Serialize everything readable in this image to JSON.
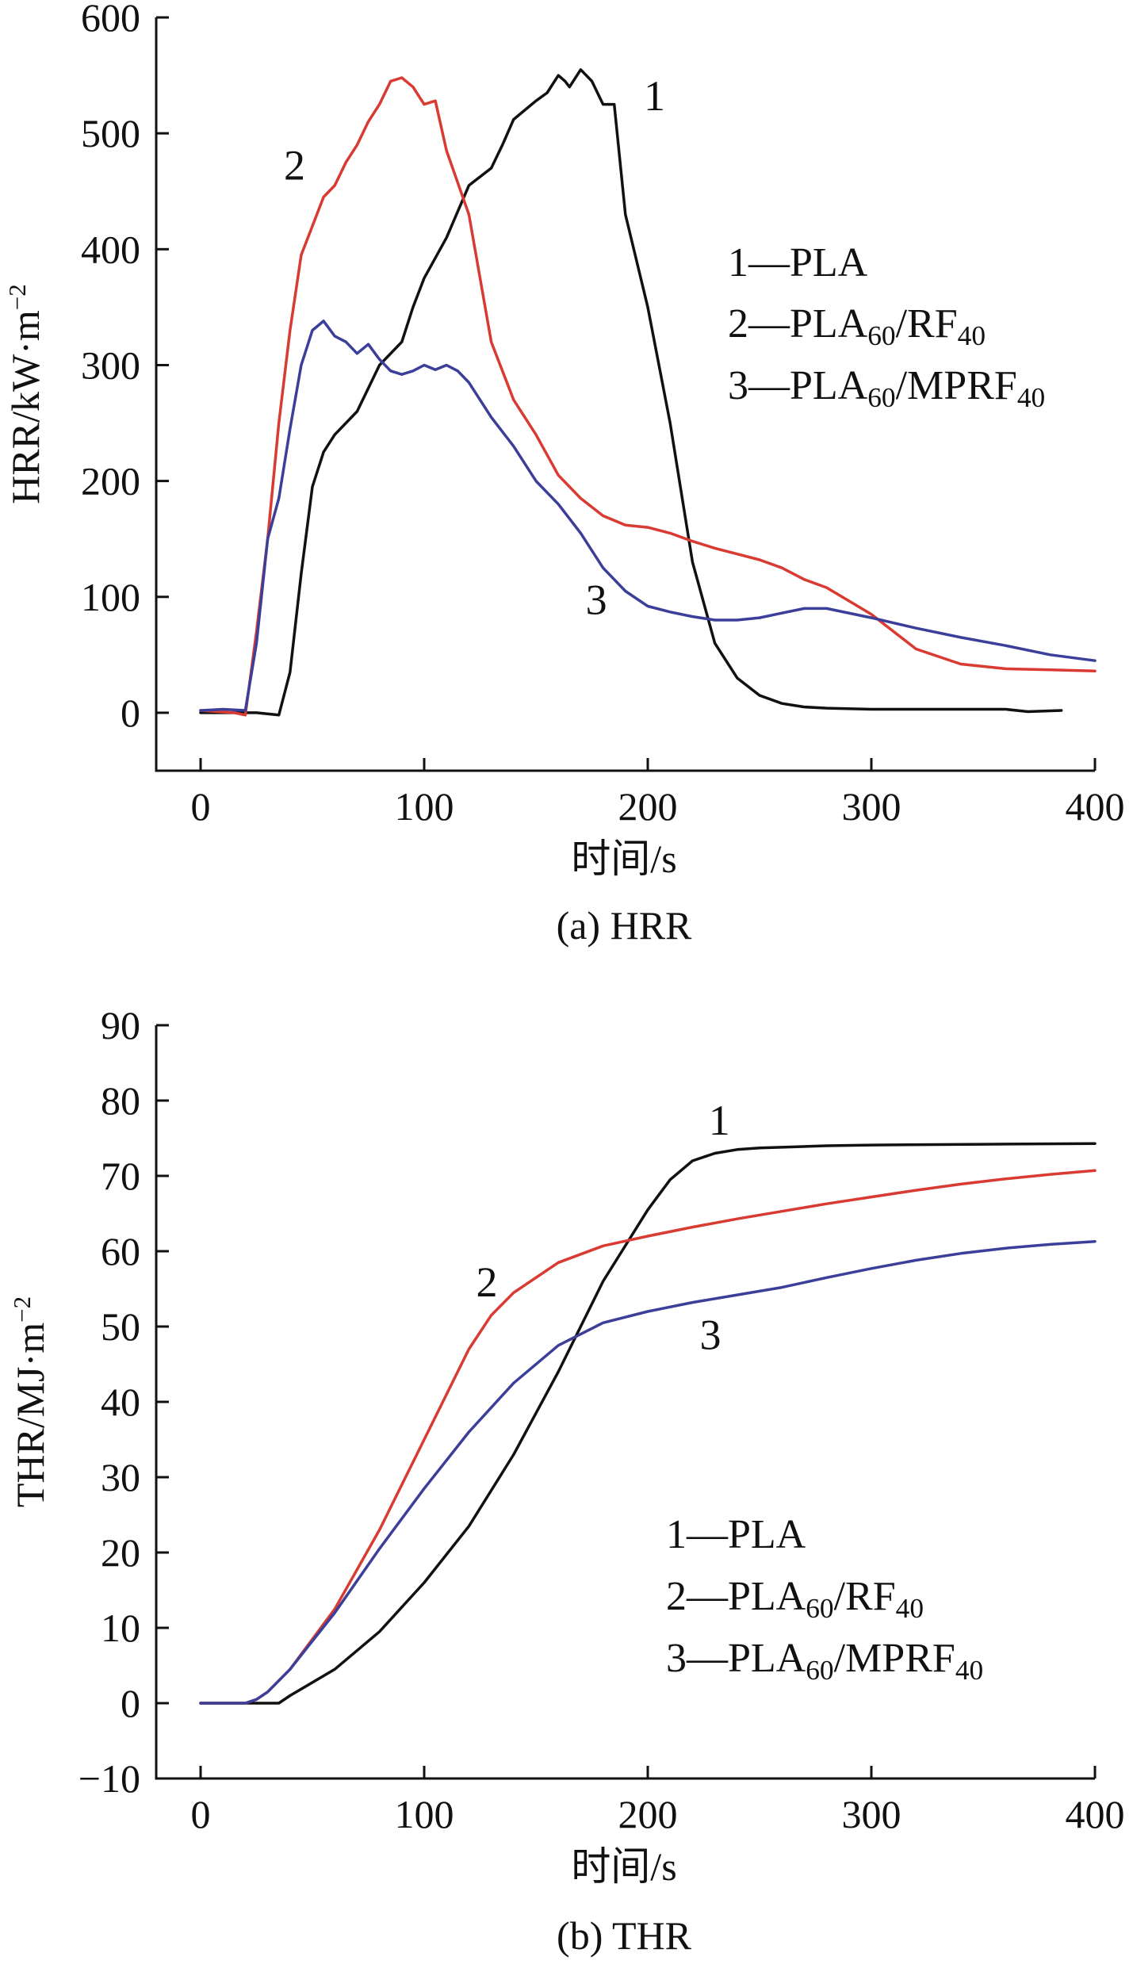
{
  "chart_data": [
    {
      "type": "line",
      "caption": "(a) HRR",
      "xlabel": "时间/s",
      "ylabel": "HRR/kW·m⁻²",
      "xlim": [
        0,
        400
      ],
      "ylim": [
        -50,
        600
      ],
      "xticks": [
        0,
        100,
        200,
        300,
        400
      ],
      "yticks": [
        0,
        100,
        200,
        300,
        400,
        500,
        600
      ],
      "legend_position": "right",
      "legend": [
        "1—PLA",
        "2—PLA₆₀/RF₄₀",
        "3—PLA₆₀/MPRF₄₀"
      ],
      "series": [
        {
          "label": "1",
          "color": "#111111",
          "x": [
            0,
            15,
            25,
            35,
            40,
            45,
            50,
            55,
            60,
            70,
            80,
            90,
            95,
            100,
            110,
            120,
            130,
            135,
            140,
            145,
            150,
            155,
            160,
            163,
            165,
            170,
            175,
            180,
            185,
            190,
            200,
            210,
            220,
            230,
            240,
            250,
            260,
            270,
            280,
            300,
            320,
            340,
            360,
            370,
            385
          ],
          "y": [
            0,
            0,
            0,
            -2,
            35,
            120,
            195,
            225,
            240,
            260,
            300,
            320,
            350,
            375,
            410,
            455,
            470,
            490,
            512,
            520,
            528,
            535,
            550,
            545,
            540,
            555,
            545,
            525,
            525,
            430,
            350,
            250,
            130,
            60,
            30,
            15,
            8,
            5,
            4,
            3,
            3,
            3,
            3,
            1,
            2
          ]
        },
        {
          "label": "2",
          "color": "#d93a31",
          "x": [
            0,
            15,
            20,
            25,
            30,
            35,
            40,
            45,
            50,
            55,
            60,
            65,
            70,
            75,
            80,
            85,
            90,
            95,
            100,
            105,
            110,
            120,
            130,
            140,
            150,
            160,
            170,
            180,
            190,
            200,
            210,
            220,
            230,
            240,
            250,
            260,
            270,
            280,
            300,
            320,
            340,
            360,
            380,
            400
          ],
          "y": [
            2,
            0,
            -2,
            70,
            150,
            250,
            330,
            395,
            420,
            445,
            455,
            475,
            490,
            510,
            525,
            545,
            548,
            540,
            525,
            528,
            485,
            430,
            320,
            270,
            240,
            205,
            185,
            170,
            162,
            160,
            155,
            148,
            142,
            137,
            132,
            125,
            115,
            108,
            85,
            55,
            42,
            38,
            37,
            36
          ]
        },
        {
          "label": "3",
          "color": "#3c3f99",
          "x": [
            0,
            10,
            20,
            25,
            30,
            35,
            40,
            45,
            50,
            55,
            60,
            65,
            70,
            75,
            80,
            85,
            90,
            95,
            100,
            105,
            110,
            115,
            120,
            130,
            140,
            150,
            160,
            170,
            180,
            190,
            200,
            210,
            220,
            230,
            240,
            250,
            260,
            270,
            280,
            300,
            320,
            340,
            360,
            380,
            400
          ],
          "y": [
            2,
            3,
            2,
            60,
            150,
            185,
            245,
            300,
            330,
            338,
            325,
            320,
            310,
            318,
            305,
            295,
            292,
            295,
            300,
            296,
            300,
            295,
            285,
            255,
            230,
            200,
            180,
            155,
            125,
            105,
            92,
            87,
            83,
            80,
            80,
            82,
            86,
            90,
            90,
            82,
            73,
            65,
            58,
            50,
            45
          ]
        }
      ],
      "annotations": [
        {
          "text": "1",
          "x": 203,
          "y": 520
        },
        {
          "text": "2",
          "x": 42,
          "y": 460
        },
        {
          "text": "3",
          "x": 177,
          "y": 85
        }
      ]
    },
    {
      "type": "line",
      "caption": "(b) THR",
      "xlabel": "时间/s",
      "ylabel": "THR/MJ·m⁻²",
      "xlim": [
        0,
        400
      ],
      "ylim": [
        -10,
        90
      ],
      "xticks": [
        0,
        100,
        200,
        300,
        400
      ],
      "yticks": [
        -10,
        0,
        10,
        20,
        30,
        40,
        50,
        60,
        70,
        80,
        90
      ],
      "legend_position": "bottom-right",
      "legend": [
        "1—PLA",
        "2—PLA₆₀/RF₄₀",
        "3—PLA₆₀/MPRF₄₀"
      ],
      "series": [
        {
          "label": "1",
          "color": "#111111",
          "x": [
            0,
            35,
            40,
            60,
            80,
            100,
            120,
            140,
            160,
            180,
            200,
            210,
            220,
            230,
            240,
            250,
            260,
            280,
            300,
            350,
            400
          ],
          "y": [
            0,
            0,
            1,
            4.5,
            9.5,
            16,
            23.5,
            33,
            44,
            56,
            65.5,
            69.5,
            72,
            73,
            73.5,
            73.7,
            73.8,
            74,
            74.1,
            74.2,
            74.3
          ]
        },
        {
          "label": "2",
          "color": "#d93a31",
          "x": [
            0,
            20,
            25,
            30,
            40,
            60,
            80,
            100,
            120,
            130,
            140,
            160,
            180,
            200,
            220,
            240,
            260,
            280,
            300,
            320,
            340,
            360,
            380,
            400
          ],
          "y": [
            0,
            0,
            0.5,
            1.5,
            4.5,
            12.5,
            23,
            35,
            47,
            51.5,
            54.5,
            58.5,
            60.7,
            62,
            63.2,
            64.3,
            65.3,
            66.3,
            67.2,
            68.1,
            68.9,
            69.6,
            70.2,
            70.7
          ]
        },
        {
          "label": "3",
          "color": "#3c3f99",
          "x": [
            0,
            20,
            25,
            30,
            40,
            60,
            80,
            100,
            120,
            140,
            160,
            180,
            200,
            220,
            240,
            260,
            280,
            300,
            320,
            340,
            360,
            380,
            400
          ],
          "y": [
            0,
            0,
            0.5,
            1.5,
            4.5,
            12,
            20.5,
            28.5,
            36,
            42.5,
            47.5,
            50.5,
            52,
            53.2,
            54.2,
            55.2,
            56.5,
            57.7,
            58.8,
            59.7,
            60.4,
            60.9,
            61.3
          ]
        }
      ],
      "annotations": [
        {
          "text": "1",
          "x": 232,
          "y": 75.5
        },
        {
          "text": "2",
          "x": 128,
          "y": 54
        },
        {
          "text": "3",
          "x": 228,
          "y": 47
        }
      ]
    }
  ]
}
